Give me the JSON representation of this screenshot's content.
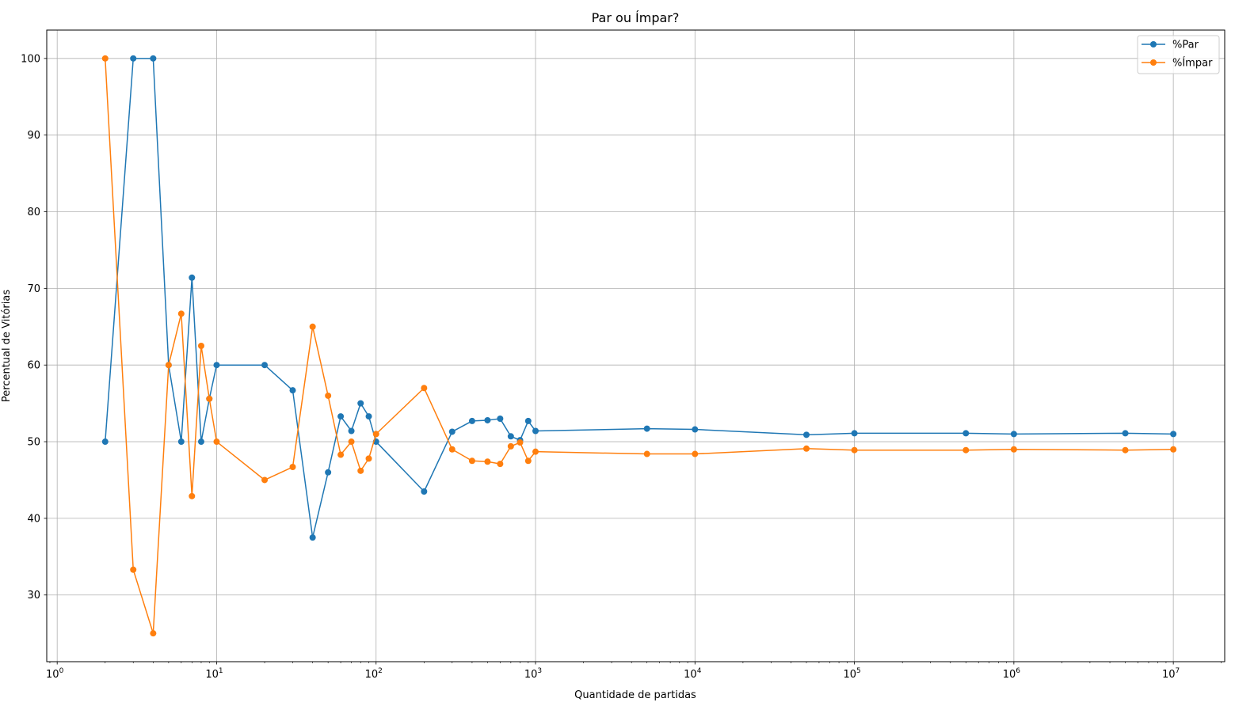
{
  "chart_data": {
    "type": "line",
    "title": "Par ou Ímpar?",
    "xlabel": "Quantidade de partidas",
    "ylabel": "Percentual de Vitórias",
    "xscale": "log",
    "xlim": [
      0.86,
      21000000
    ],
    "ylim": [
      21.3,
      103.7
    ],
    "grid": true,
    "legend_position": "top-right",
    "x_ticks": [
      {
        "value": 1,
        "base": "10",
        "exp": "0"
      },
      {
        "value": 10,
        "base": "10",
        "exp": "1"
      },
      {
        "value": 100,
        "base": "10",
        "exp": "2"
      },
      {
        "value": 1000,
        "base": "10",
        "exp": "3"
      },
      {
        "value": 10000,
        "base": "10",
        "exp": "4"
      },
      {
        "value": 100000,
        "base": "10",
        "exp": "5"
      },
      {
        "value": 1000000,
        "base": "10",
        "exp": "6"
      },
      {
        "value": 10000000,
        "base": "10",
        "exp": "7"
      }
    ],
    "y_ticks": [
      30,
      40,
      50,
      60,
      70,
      80,
      90,
      100
    ],
    "x": [
      2,
      3,
      4,
      5,
      6,
      7,
      8,
      9,
      10,
      20,
      30,
      40,
      50,
      60,
      70,
      80,
      90,
      100,
      200,
      300,
      400,
      500,
      600,
      700,
      800,
      900,
      1000,
      5000,
      10000,
      50000,
      100000,
      500000,
      1000000,
      5000000,
      10000000
    ],
    "series": [
      {
        "name": "%Par",
        "color": "#1f77b4",
        "values": [
          50,
          100,
          100,
          60,
          50,
          71.4,
          50,
          55.6,
          60,
          60,
          56.7,
          37.5,
          46,
          53.3,
          51.4,
          55,
          53.3,
          50,
          43.5,
          51.3,
          52.7,
          52.8,
          53,
          50.7,
          50.2,
          52.7,
          51.4,
          51.7,
          51.6,
          50.9,
          51.1,
          51.1,
          51,
          51.1,
          51
        ]
      },
      {
        "name": "%Ímpar",
        "color": "#ff7f0e",
        "values": [
          100,
          33.3,
          25,
          60,
          66.7,
          42.9,
          62.5,
          55.6,
          50,
          45,
          46.7,
          65,
          56,
          48.3,
          50,
          46.2,
          47.8,
          51,
          57,
          49,
          47.5,
          47.4,
          47.1,
          49.4,
          49.9,
          47.5,
          48.7,
          48.4,
          48.4,
          49.1,
          48.9,
          48.9,
          49,
          48.9,
          49
        ]
      }
    ]
  }
}
